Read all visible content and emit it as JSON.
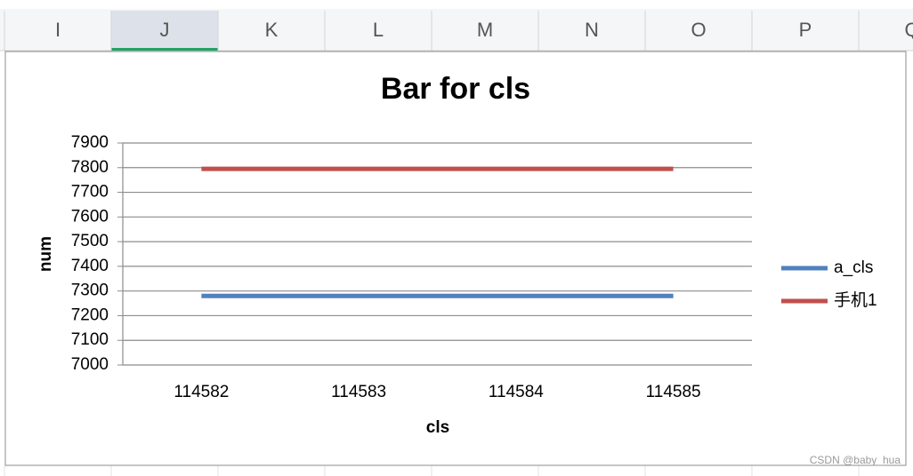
{
  "sheet": {
    "columns": [
      "I",
      "J",
      "K",
      "L",
      "M",
      "N",
      "O",
      "P",
      "Q"
    ],
    "selected_column": 1
  },
  "chart_data": {
    "type": "line",
    "title": "Bar for cls",
    "x_label": "cls",
    "y_label": "num",
    "categories": [
      "114582",
      "114583",
      "114584",
      "114585"
    ],
    "series": [
      {
        "name": "a_cls",
        "color": "#4f81bd",
        "values": [
          7280,
          7280,
          7280,
          7280
        ]
      },
      {
        "name": "手机1",
        "color": "#c0504d",
        "values": [
          7795,
          7795,
          7795,
          7795
        ]
      }
    ],
    "ylim": [
      7000,
      7900
    ],
    "yticks": [
      7000,
      7100,
      7200,
      7300,
      7400,
      7500,
      7600,
      7700,
      7800,
      7900
    ],
    "grid": true,
    "legend": "right"
  },
  "watermark": "CSDN @baby_hua"
}
